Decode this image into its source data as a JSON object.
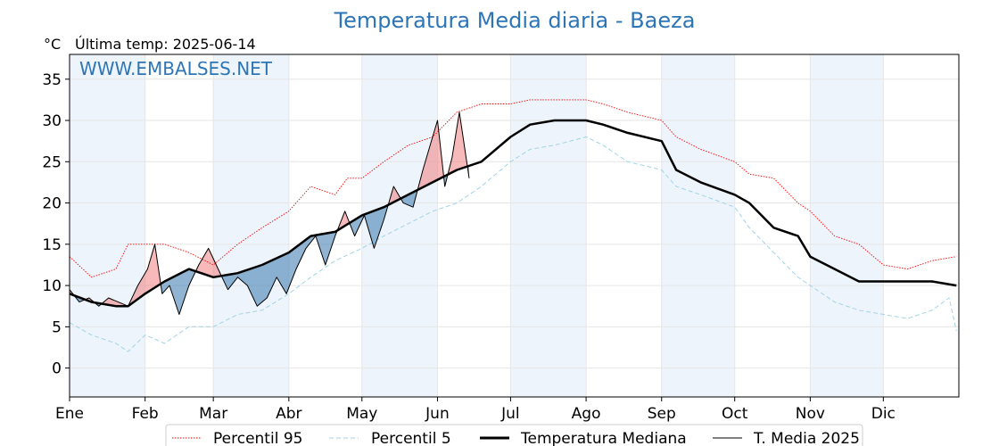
{
  "title": "Temperatura Media diaria - Baeza",
  "unit_label": "°C",
  "last_temp_label": "Última temp: 2025-06-14",
  "watermark": "WWW.EMBALSES.NET",
  "colors": {
    "title": "#2e75b6",
    "p95": "#ff0000",
    "p5": "#9fd4e8",
    "median": "#000000",
    "current": "#000000",
    "above_fill": "#f08080",
    "below_fill": "#4682b4",
    "month_band": "#eef4fb",
    "grid": "#e6e6e6"
  },
  "chart_data": {
    "type": "line",
    "title": "Temperatura Media diaria - Baeza",
    "ylabel": "°C",
    "ylim": [
      -3.5,
      38
    ],
    "y_ticks": [
      0,
      5,
      10,
      15,
      20,
      25,
      30,
      35
    ],
    "x_ticks": [
      {
        "doy": 1,
        "label": "Ene"
      },
      {
        "doy": 32,
        "label": "Feb"
      },
      {
        "doy": 60,
        "label": "Mar"
      },
      {
        "doy": 91,
        "label": "Abr"
      },
      {
        "doy": 121,
        "label": "May"
      },
      {
        "doy": 152,
        "label": "Jun"
      },
      {
        "doy": 182,
        "label": "Jul"
      },
      {
        "doy": 213,
        "label": "Ago"
      },
      {
        "doy": 244,
        "label": "Sep"
      },
      {
        "doy": 274,
        "label": "Oct"
      },
      {
        "doy": 305,
        "label": "Nov"
      },
      {
        "doy": 335,
        "label": "Dic"
      }
    ],
    "xlim": [
      1,
      366
    ],
    "grid": true,
    "legend_placement": "bottom",
    "shaded_months": [
      "Ene",
      "Mar",
      "May",
      "Jul",
      "Sep",
      "Nov"
    ],
    "series": [
      {
        "name": "Percentil 95",
        "style": "dotted",
        "x": [
          1,
          10,
          20,
          25,
          32,
          40,
          50,
          60,
          70,
          80,
          91,
          100,
          110,
          115,
          121,
          130,
          140,
          150,
          160,
          170,
          182,
          190,
          200,
          213,
          220,
          230,
          244,
          250,
          260,
          274,
          280,
          290,
          300,
          305,
          315,
          325,
          335,
          345,
          355,
          365
        ],
        "y": [
          13.5,
          11,
          12,
          15,
          15,
          15,
          14,
          12.5,
          15,
          17,
          19,
          22,
          21,
          23,
          23,
          25,
          27,
          28,
          31,
          32,
          32,
          32.5,
          32.5,
          32.5,
          32,
          31,
          30,
          28,
          26.5,
          25,
          23.5,
          23,
          20,
          19,
          16,
          15,
          12.5,
          12,
          13,
          13.5
        ]
      },
      {
        "name": "Percentil 5",
        "style": "dashed",
        "x": [
          1,
          10,
          20,
          25,
          32,
          40,
          50,
          60,
          70,
          80,
          91,
          100,
          110,
          121,
          130,
          140,
          150,
          160,
          170,
          182,
          190,
          200,
          213,
          220,
          230,
          244,
          250,
          260,
          274,
          280,
          290,
          300,
          305,
          315,
          325,
          335,
          345,
          355,
          362,
          365
        ],
        "y": [
          5.5,
          4,
          3,
          2,
          4,
          3,
          5,
          5,
          6.5,
          7,
          9,
          11,
          13,
          14.5,
          16,
          17.5,
          19,
          20,
          22,
          25,
          26.5,
          27,
          28,
          27,
          25,
          24,
          22,
          21,
          19.5,
          17,
          14,
          11,
          10,
          8,
          7,
          6.5,
          6,
          7,
          8.5,
          4.5
        ]
      },
      {
        "name": "Temperatura Mediana",
        "style": "solid-thick",
        "x": [
          1,
          10,
          20,
          25,
          32,
          40,
          50,
          60,
          70,
          80,
          91,
          100,
          110,
          121,
          130,
          140,
          150,
          160,
          170,
          182,
          190,
          200,
          213,
          220,
          230,
          244,
          250,
          260,
          274,
          280,
          290,
          300,
          305,
          315,
          325,
          335,
          345,
          355,
          365
        ],
        "y": [
          9,
          8,
          7.5,
          7.5,
          9,
          10.5,
          12,
          11,
          11.5,
          12.5,
          14,
          16,
          16.5,
          18.5,
          19.5,
          21,
          22.5,
          24,
          25,
          28,
          29.5,
          30,
          30,
          29.5,
          28.5,
          27.5,
          24,
          22.5,
          21,
          20,
          17,
          16,
          13.5,
          12,
          10.5,
          10.5,
          10.5,
          10.5,
          10
        ]
      },
      {
        "name": "T. Media 2025",
        "style": "solid-thin",
        "x": [
          1,
          5,
          9,
          13,
          17,
          21,
          25,
          29,
          33,
          36,
          39,
          42,
          46,
          50,
          54,
          58,
          62,
          66,
          70,
          74,
          78,
          82,
          86,
          90,
          94,
          98,
          102,
          106,
          110,
          114,
          118,
          122,
          126,
          130,
          134,
          138,
          142,
          146,
          150,
          152,
          155,
          158,
          161,
          165
        ],
        "y": [
          9.5,
          8,
          8.5,
          7.5,
          8.5,
          8,
          7.5,
          10,
          12,
          15,
          9,
          10,
          6.5,
          10,
          12.5,
          14.5,
          12,
          9.5,
          11,
          10,
          7.5,
          8.5,
          11,
          9,
          12,
          14.5,
          16,
          12.5,
          16,
          19,
          16,
          18.5,
          14.5,
          18,
          22,
          20,
          19.5,
          24,
          28,
          30,
          22,
          25.5,
          31,
          23
        ]
      }
    ],
    "fill_between": [
      {
        "series_a": "T. Media 2025",
        "series_b": "Temperatura Mediana",
        "above_color": "#f08080",
        "below_color": "#4682b4"
      }
    ]
  },
  "legend": {
    "p95": "Percentil 95",
    "p5": "Percentil 5",
    "median": "Temperatura Mediana",
    "current": "T. Media 2025"
  }
}
